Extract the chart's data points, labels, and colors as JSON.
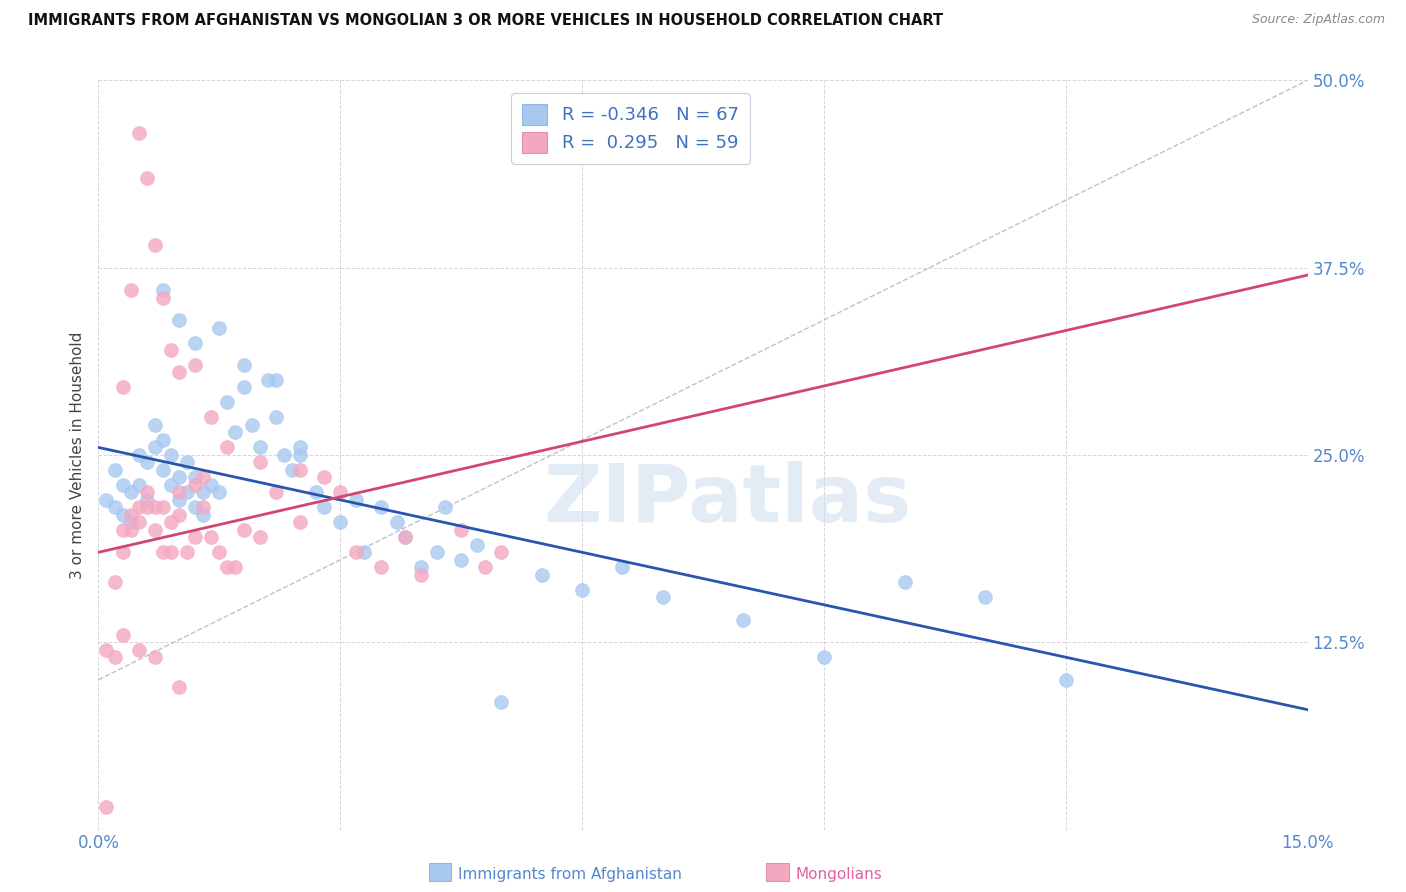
{
  "title": "IMMIGRANTS FROM AFGHANISTAN VS MONGOLIAN 3 OR MORE VEHICLES IN HOUSEHOLD CORRELATION CHART",
  "source": "Source: ZipAtlas.com",
  "ylabel": "3 or more Vehicles in Household",
  "xlim": [
    0.0,
    0.15
  ],
  "ylim": [
    0.0,
    0.5
  ],
  "xtick_labels": [
    "0.0%",
    "",
    "",
    "",
    "",
    "15.0%"
  ],
  "ytick_labels": [
    "",
    "12.5%",
    "25.0%",
    "37.5%",
    "50.0%"
  ],
  "legend_label1": "Immigrants from Afghanistan",
  "legend_label2": "Mongolians",
  "R1": "-0.346",
  "N1": "67",
  "R2": "0.295",
  "N2": "59",
  "color_blue": "#A8C8F0",
  "color_pink": "#F4A8C0",
  "line_blue": "#2855B0",
  "line_pink": "#D04870",
  "line_dashed_color": "#C0C0CC",
  "background": "#FFFFFF",
  "watermark": "ZIPatlas",
  "blue_x": [
    0.001,
    0.002,
    0.002,
    0.003,
    0.003,
    0.004,
    0.004,
    0.005,
    0.005,
    0.006,
    0.006,
    0.007,
    0.007,
    0.008,
    0.008,
    0.009,
    0.009,
    0.01,
    0.01,
    0.011,
    0.011,
    0.012,
    0.012,
    0.013,
    0.013,
    0.014,
    0.015,
    0.016,
    0.017,
    0.018,
    0.019,
    0.02,
    0.021,
    0.022,
    0.023,
    0.024,
    0.025,
    0.027,
    0.028,
    0.03,
    0.032,
    0.033,
    0.035,
    0.037,
    0.038,
    0.04,
    0.042,
    0.043,
    0.045,
    0.047,
    0.05,
    0.055,
    0.06,
    0.065,
    0.07,
    0.08,
    0.09,
    0.1,
    0.11,
    0.12,
    0.008,
    0.01,
    0.012,
    0.015,
    0.018,
    0.022,
    0.025
  ],
  "blue_y": [
    0.22,
    0.215,
    0.24,
    0.23,
    0.21,
    0.225,
    0.205,
    0.23,
    0.25,
    0.22,
    0.245,
    0.27,
    0.255,
    0.26,
    0.24,
    0.25,
    0.23,
    0.235,
    0.22,
    0.245,
    0.225,
    0.235,
    0.215,
    0.225,
    0.21,
    0.23,
    0.225,
    0.285,
    0.265,
    0.295,
    0.27,
    0.255,
    0.3,
    0.275,
    0.25,
    0.24,
    0.255,
    0.225,
    0.215,
    0.205,
    0.22,
    0.185,
    0.215,
    0.205,
    0.195,
    0.175,
    0.185,
    0.215,
    0.18,
    0.19,
    0.085,
    0.17,
    0.16,
    0.175,
    0.155,
    0.14,
    0.115,
    0.165,
    0.155,
    0.1,
    0.36,
    0.34,
    0.325,
    0.335,
    0.31,
    0.3,
    0.25
  ],
  "pink_x": [
    0.001,
    0.001,
    0.002,
    0.002,
    0.003,
    0.003,
    0.004,
    0.004,
    0.005,
    0.005,
    0.006,
    0.006,
    0.007,
    0.007,
    0.008,
    0.008,
    0.009,
    0.009,
    0.01,
    0.01,
    0.011,
    0.012,
    0.012,
    0.013,
    0.013,
    0.014,
    0.015,
    0.016,
    0.017,
    0.018,
    0.02,
    0.022,
    0.025,
    0.028,
    0.03,
    0.032,
    0.035,
    0.038,
    0.04,
    0.045,
    0.048,
    0.05,
    0.003,
    0.004,
    0.005,
    0.006,
    0.007,
    0.008,
    0.009,
    0.01,
    0.012,
    0.014,
    0.016,
    0.02,
    0.025,
    0.003,
    0.005,
    0.007,
    0.01
  ],
  "pink_y": [
    0.015,
    0.12,
    0.115,
    0.165,
    0.185,
    0.2,
    0.2,
    0.21,
    0.215,
    0.205,
    0.215,
    0.225,
    0.215,
    0.2,
    0.215,
    0.185,
    0.205,
    0.185,
    0.21,
    0.225,
    0.185,
    0.23,
    0.195,
    0.235,
    0.215,
    0.195,
    0.185,
    0.175,
    0.175,
    0.2,
    0.195,
    0.225,
    0.205,
    0.235,
    0.225,
    0.185,
    0.175,
    0.195,
    0.17,
    0.2,
    0.175,
    0.185,
    0.295,
    0.36,
    0.465,
    0.435,
    0.39,
    0.355,
    0.32,
    0.305,
    0.31,
    0.275,
    0.255,
    0.245,
    0.24,
    0.13,
    0.12,
    0.115,
    0.095
  ],
  "blue_line_x": [
    0.0,
    0.15
  ],
  "blue_line_y": [
    0.255,
    0.08
  ],
  "pink_line_x": [
    0.0,
    0.15
  ],
  "pink_line_y": [
    0.185,
    0.37
  ],
  "diag_line_x": [
    0.0,
    0.15
  ],
  "diag_line_y": [
    0.1,
    0.5
  ]
}
